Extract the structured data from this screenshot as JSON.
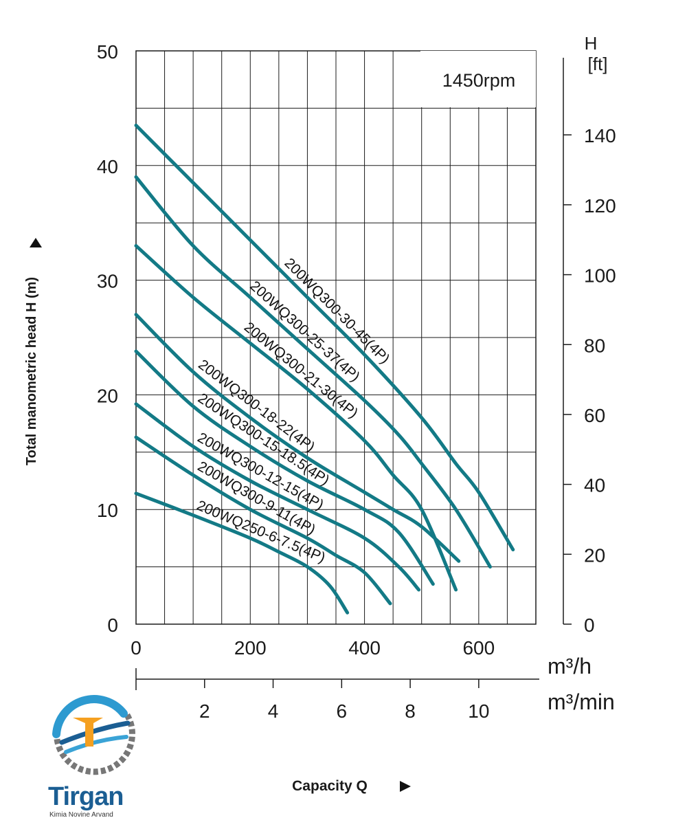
{
  "chart_data": {
    "type": "line",
    "title": "",
    "annotation": "1450rpm",
    "xlabel": "Capacity Q",
    "ylabel": "Total manometric head H (m)",
    "y2label_top": "H",
    "y2label_unit": "[ft]",
    "x_unit": "m³/h",
    "x2_unit": "m³/min",
    "xlim": [
      0,
      700
    ],
    "ylim": [
      0,
      50
    ],
    "x_ticks": [
      0,
      200,
      400,
      600
    ],
    "x2_ticks": [
      2,
      4,
      6,
      8,
      10
    ],
    "y_ticks": [
      0,
      10,
      20,
      30,
      40,
      50
    ],
    "y2_ticks": [
      0,
      20,
      40,
      60,
      80,
      100,
      120,
      140
    ],
    "grid": true,
    "series": [
      {
        "name": "200WQ300-30-45(4P)",
        "x": [
          0,
          100,
          200,
          300,
          400,
          500,
          560,
          600,
          660
        ],
        "y": [
          43.5,
          38.5,
          33.5,
          28.5,
          23.5,
          18.0,
          14.0,
          11.5,
          6.5
        ]
      },
      {
        "name": "200WQ300-25-37(4P)",
        "x": [
          0,
          100,
          200,
          300,
          400,
          460,
          500,
          560,
          620
        ],
        "y": [
          39.0,
          33.0,
          28.5,
          24.0,
          19.5,
          16.5,
          14.0,
          10.0,
          5.0
        ]
      },
      {
        "name": "200WQ300-21-30(4P)",
        "x": [
          0,
          100,
          200,
          300,
          400,
          450,
          500,
          560
        ],
        "y": [
          33.0,
          28.5,
          24.5,
          20.5,
          16.0,
          13.0,
          10.0,
          3.0
        ]
      },
      {
        "name": "200WQ300-18-22(4P)",
        "x": [
          0,
          100,
          200,
          300,
          400,
          450,
          500,
          565
        ],
        "y": [
          27.0,
          22.0,
          18.0,
          14.5,
          11.5,
          10.0,
          8.5,
          5.5
        ]
      },
      {
        "name": "200WQ300-15-18.5(4P)",
        "x": [
          0,
          100,
          200,
          300,
          400,
          460,
          520
        ],
        "y": [
          23.8,
          19.0,
          15.5,
          12.5,
          10.0,
          8.0,
          3.5
        ]
      },
      {
        "name": "200WQ300-12-15(4P)",
        "x": [
          0,
          100,
          200,
          300,
          400,
          460,
          495
        ],
        "y": [
          19.2,
          15.5,
          12.5,
          10.0,
          7.5,
          5.0,
          3.0
        ]
      },
      {
        "name": "200WQ300-9-11(4P)",
        "x": [
          0,
          100,
          200,
          300,
          350,
          400,
          445
        ],
        "y": [
          16.3,
          13.0,
          10.0,
          7.5,
          6.0,
          4.5,
          1.8
        ]
      },
      {
        "name": "200WQ250-6-7.5(4P)",
        "x": [
          0,
          100,
          200,
          250,
          300,
          340,
          370
        ],
        "y": [
          11.4,
          9.5,
          7.5,
          6.3,
          5.0,
          3.3,
          1.0
        ]
      }
    ]
  },
  "logo": {
    "name": "Tirgan",
    "subtitle": "Kimia Novine Arvand"
  }
}
